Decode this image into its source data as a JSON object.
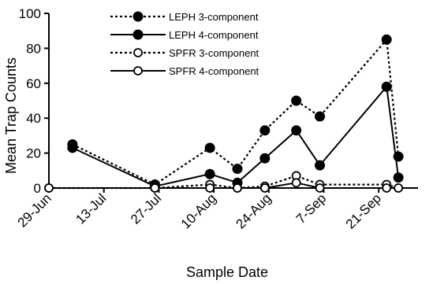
{
  "chart_data": {
    "type": "line",
    "xlabel": "Sample Date",
    "ylabel": "Mean Trap Counts",
    "ylim": [
      0,
      100
    ],
    "yticks": [
      "0",
      "20",
      "40",
      "60",
      "80",
      "100"
    ],
    "xlim": [
      "2024-06-29",
      "2024-10-01"
    ],
    "xticks": [
      {
        "date": "2024-06-29",
        "label": "29-Jun"
      },
      {
        "date": "2024-07-13",
        "label": "13-Jul"
      },
      {
        "date": "2024-07-27",
        "label": "27-Jul"
      },
      {
        "date": "2024-08-10",
        "label": "10-Aug"
      },
      {
        "date": "2024-08-24",
        "label": "24-Aug"
      },
      {
        "date": "2024-09-07",
        "label": "7-Sep"
      },
      {
        "date": "2024-09-21",
        "label": "21-Sep"
      }
    ],
    "grid": false,
    "legend_position": "top-center",
    "series": [
      {
        "name": "LEPH 3-component",
        "line_style": "dotted",
        "marker": "filled-circle",
        "x": [
          "2024-07-05",
          "2024-07-26",
          "2024-08-09",
          "2024-08-16",
          "2024-08-23",
          "2024-08-31",
          "2024-09-06",
          "2024-09-23",
          "2024-09-26"
        ],
        "y": [
          25,
          2,
          23,
          11,
          33,
          50,
          41,
          85,
          18
        ]
      },
      {
        "name": "LEPH 4-component",
        "line_style": "solid",
        "marker": "filled-circle",
        "x": [
          "2024-07-05",
          "2024-07-26",
          "2024-08-09",
          "2024-08-16",
          "2024-08-23",
          "2024-08-31",
          "2024-09-06",
          "2024-09-23",
          "2024-09-26"
        ],
        "y": [
          23,
          1,
          8,
          3,
          17,
          33,
          13,
          58,
          6
        ]
      },
      {
        "name": "SPFR 3-component",
        "line_style": "dotted",
        "marker": "open-circle",
        "x": [
          "2024-06-29",
          "2024-07-26",
          "2024-08-09",
          "2024-08-16",
          "2024-08-23",
          "2024-08-31",
          "2024-09-06",
          "2024-09-23",
          "2024-09-26"
        ],
        "y": [
          0,
          0,
          2,
          0,
          1,
          7,
          2,
          2,
          0
        ]
      },
      {
        "name": "SPFR 4-component",
        "line_style": "solid",
        "marker": "open-circle",
        "x": [
          "2024-06-29",
          "2024-07-26",
          "2024-08-09",
          "2024-08-16",
          "2024-08-23",
          "2024-08-31",
          "2024-09-06",
          "2024-09-23",
          "2024-09-26"
        ],
        "y": [
          0,
          0,
          0,
          0,
          0,
          3,
          0,
          0,
          0
        ]
      }
    ],
    "colors": {
      "line": "#000000",
      "open_marker_fill": "#ffffff"
    }
  }
}
